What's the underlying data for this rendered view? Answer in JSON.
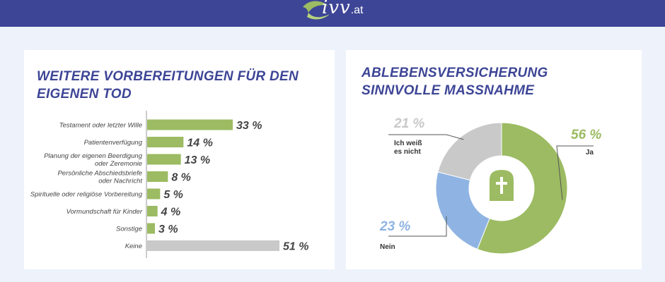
{
  "header": {
    "logo_main": "ivv",
    "logo_domain": ".at",
    "logo_icon": "leaf-logo-icon",
    "bg_color": "#3d4596"
  },
  "left_panel": {
    "title": "WEITERE VORBEREITUNGEN FÜR DEN EIGENEN TOD"
  },
  "right_panel": {
    "title": "ABLEBENSVERSICHERUNG SINNVOLLE MASSNAHME",
    "center_icon": "gravestone-cross-icon"
  },
  "chart_data": [
    {
      "type": "bar",
      "orientation": "horizontal",
      "title": "WEITERE VORBEREITUNGEN FÜR DEN EIGENEN TOD",
      "categories": [
        "Testament oder letzter Wille",
        "Patientenverfügung",
        "Planung der eigenen Beerdigung oder Zeremonie",
        "Persönliche Abschiedsbriefe oder Nachricht",
        "Spirituelle oder religiöse Vorbereitung",
        "Vormundschaft  für Kinder",
        "Sonstige",
        "Keine"
      ],
      "category_lines": [
        [
          "Testament oder letzter Wille"
        ],
        [
          "Patientenverfügung"
        ],
        [
          "Planung der eigenen Beerdigung",
          "oder Zeremonie"
        ],
        [
          "Persönliche Abschiedsbriefe",
          "oder Nachricht"
        ],
        [
          "Spirituelle oder religiöse Vorbereitung"
        ],
        [
          "Vormundschaft  für Kinder"
        ],
        [
          "Sonstige"
        ],
        [
          "Keine"
        ]
      ],
      "values": [
        33,
        14,
        13,
        8,
        5,
        4,
        3,
        51
      ],
      "value_labels": [
        "33 %",
        "14 %",
        "13 %",
        "8 %",
        "5 %",
        "4 %",
        "3 %",
        "51 %"
      ],
      "bar_colors": [
        "#9cbb62",
        "#9cbb62",
        "#9cbb62",
        "#9cbb62",
        "#9cbb62",
        "#9cbb62",
        "#9cbb62",
        "#c9c9c9"
      ],
      "xlim": [
        0,
        51
      ],
      "grid": false,
      "legend": "none"
    },
    {
      "type": "pie",
      "style": "donut",
      "title": "ABLEBENSVERSICHERUNG SINNVOLLE MASSNAHME",
      "slices": [
        {
          "label": "Ja",
          "value": 56,
          "pct_label": "56 %",
          "color": "#9cbb62"
        },
        {
          "label": "Nein",
          "value": 23,
          "pct_label": "23 %",
          "color": "#8fb4e3"
        },
        {
          "label": "Ich weiß es nicht",
          "label_lines": [
            "Ich weiß",
            "es nicht"
          ],
          "value": 21,
          "pct_label": "21 %",
          "color": "#c9c9c9"
        }
      ],
      "legend": "none"
    }
  ]
}
